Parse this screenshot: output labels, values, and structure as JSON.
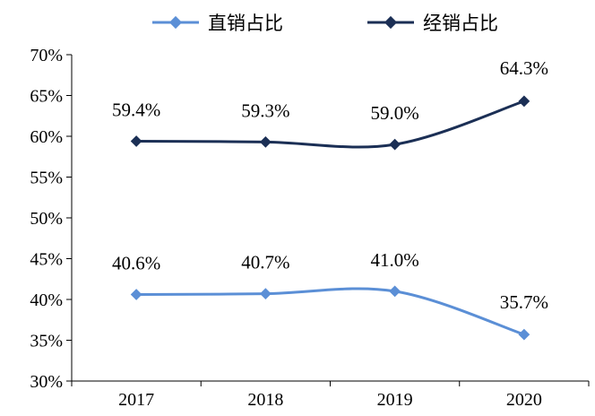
{
  "chart_data": {
    "type": "line",
    "categories": [
      "2017",
      "2018",
      "2019",
      "2020"
    ],
    "series": [
      {
        "name": "直销占比",
        "values": [
          40.6,
          40.7,
          41.0,
          35.7
        ],
        "labels": [
          "40.6%",
          "40.7%",
          "41.0%",
          "35.7%"
        ],
        "color": "#5b8fd6"
      },
      {
        "name": "经销占比",
        "values": [
          59.4,
          59.3,
          59.0,
          64.3
        ],
        "labels": [
          "59.4%",
          "59.3%",
          "59.0%",
          "64.3%"
        ],
        "color": "#1b2f55"
      }
    ],
    "ylim": [
      30,
      70
    ],
    "yticks": [
      "70%",
      "65%",
      "60%",
      "55%",
      "50%",
      "45%",
      "40%",
      "35%",
      "30%"
    ],
    "legend_position": "top",
    "grid": false,
    "smooth": true,
    "marker": "diamond"
  }
}
